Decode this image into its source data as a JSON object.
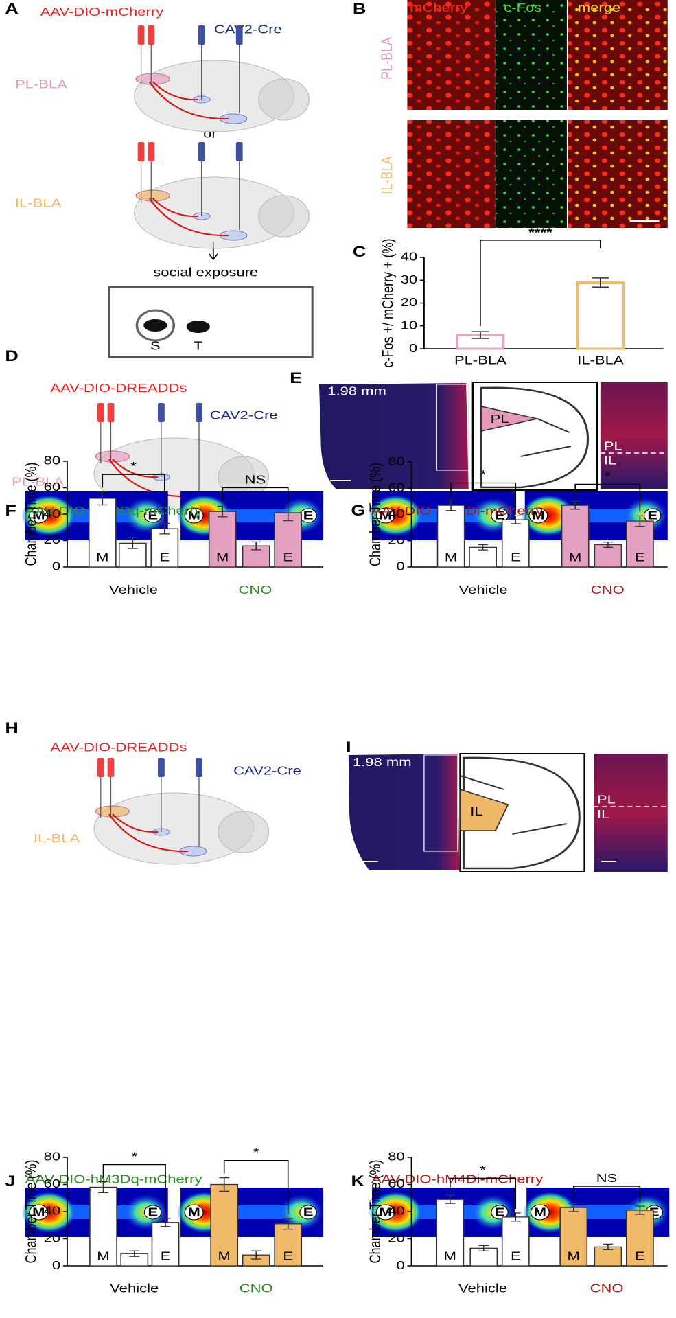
{
  "panels": {
    "A": {
      "letter": "A",
      "virus": "AAV-DIO-mCherry",
      "retro": "CAV2-Cre",
      "pl": "PL-BLA",
      "or": "or",
      "il": "IL-BLA",
      "step": "social exposure",
      "subject": "S",
      "target": "T"
    },
    "B": {
      "letter": "B",
      "channels": [
        "mCherry",
        "c-Fos",
        "merge"
      ],
      "rows": [
        "PL-BLA",
        "IL-BLA"
      ]
    },
    "C": {
      "letter": "C"
    },
    "D": {
      "letter": "D",
      "virus": "AAV-DIO-DREADDs",
      "retro": "CAV2-Cre",
      "region": "PL-BLA"
    },
    "E": {
      "letter": "E",
      "depth": "1.98 mm",
      "atlas_region": "PL",
      "upper": "PL",
      "lower": "IL"
    },
    "F": {
      "letter": "F"
    },
    "G": {
      "letter": "G"
    },
    "H": {
      "letter": "H",
      "virus": "AAV-DIO-DREADDs",
      "retro": "CAV2-Cre",
      "region": "IL-BLA"
    },
    "I": {
      "letter": "I",
      "depth": "1.98 mm",
      "atlas_region": "IL",
      "upper": "PL",
      "lower": "IL"
    },
    "J": {
      "letter": "J"
    },
    "K": {
      "letter": "K"
    }
  },
  "heatmap_labels": [
    "M",
    "E"
  ],
  "chart_data": [
    {
      "type": "bar",
      "categories": [
        "PL-BLA",
        "IL-BLA"
      ],
      "values": [
        6,
        29
      ],
      "errors": [
        1.5,
        2
      ],
      "colors": [
        "#e8a2c4",
        "#f0ba6a"
      ],
      "ylabel": "c-Fos +/ mCherry + (%)",
      "ylim": [
        0,
        40
      ],
      "yticks": [
        0,
        10,
        20,
        30,
        40
      ],
      "annotation": "****"
    },
    {
      "type": "grouped_bar",
      "title": "AAV-DIO-hM3Dq-mCherry",
      "title_color": "#2e8b22",
      "categories": [
        "M",
        null,
        "E"
      ],
      "ylabel": "Chamber Time (%)",
      "ylim": [
        0,
        80
      ],
      "yticks": [
        0,
        20,
        40,
        60,
        80
      ],
      "series": [
        {
          "name": "Vehicle",
          "color": "#ffffff",
          "label_color": "#000000",
          "values": [
            52,
            18,
            29
          ],
          "errors": [
            5,
            4,
            4
          ]
        },
        {
          "name": "CNO",
          "color": "#e4a0c0",
          "label_color": "#2e8b22",
          "values": [
            42,
            16,
            41
          ],
          "errors": [
            4,
            3,
            6
          ]
        }
      ],
      "annotations": [
        "*",
        "NS"
      ]
    },
    {
      "type": "grouped_bar",
      "title": "AAV-DIO-hM4Di-mCherry",
      "title_color": "#b01818",
      "categories": [
        "M",
        null,
        "E"
      ],
      "ylabel": "Chamber Time (%)",
      "ylim": [
        0,
        80
      ],
      "yticks": [
        0,
        20,
        40,
        60,
        80
      ],
      "series": [
        {
          "name": "Vehicle",
          "color": "#ffffff",
          "label_color": "#000000",
          "values": [
            47,
            15,
            36
          ],
          "errors": [
            4,
            2,
            3
          ]
        },
        {
          "name": "CNO",
          "color": "#e4a0c0",
          "label_color": "#b01818",
          "values": [
            47,
            17,
            35
          ],
          "errors": [
            3,
            2,
            4
          ]
        }
      ],
      "annotations": [
        "*",
        "*"
      ]
    },
    {
      "type": "grouped_bar",
      "title": "AAV-DIO-hM3Dq-mCherry",
      "title_color": "#2e8b22",
      "categories": [
        "M",
        null,
        "E"
      ],
      "ylabel": "Chamber Time (%)",
      "ylim": [
        0,
        80
      ],
      "yticks": [
        0,
        20,
        40,
        60,
        80
      ],
      "series": [
        {
          "name": "Vehicle",
          "color": "#ffffff",
          "label_color": "#000000",
          "values": [
            58,
            9,
            32
          ],
          "errors": [
            4,
            2,
            3
          ]
        },
        {
          "name": "CNO",
          "color": "#f0ba6a",
          "label_color": "#2e8b22",
          "values": [
            60,
            8,
            31
          ],
          "errors": [
            5,
            3,
            4
          ]
        }
      ],
      "annotations": [
        "*",
        "*"
      ]
    },
    {
      "type": "grouped_bar",
      "title": "AAV-DIO-hM4Di-mCherry",
      "title_color": "#b01818",
      "categories": [
        "M",
        null,
        "E"
      ],
      "ylabel": "Chamber Time (%)",
      "ylim": [
        0,
        80
      ],
      "yticks": [
        0,
        20,
        40,
        60,
        80
      ],
      "series": [
        {
          "name": "Vehicle",
          "color": "#ffffff",
          "label_color": "#000000",
          "values": [
            49,
            13,
            36
          ],
          "errors": [
            3,
            2,
            3
          ]
        },
        {
          "name": "CNO",
          "color": "#f0ba6a",
          "label_color": "#b01818",
          "values": [
            43,
            14,
            41
          ],
          "errors": [
            3,
            2,
            3
          ]
        }
      ],
      "annotations": [
        "*",
        "NS"
      ]
    }
  ]
}
